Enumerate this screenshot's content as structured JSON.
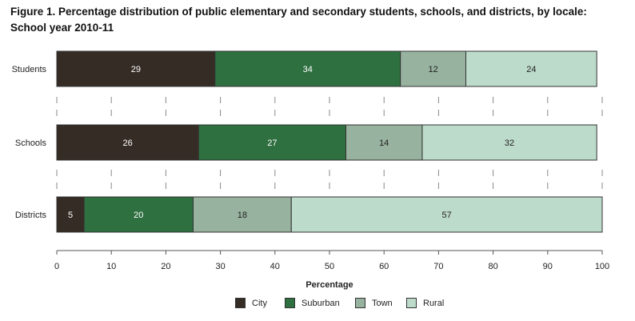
{
  "title_line1": "Figure 1. Percentage distribution of public elementary and secondary students, schools, and districts, by locale:",
  "title_line2": "School year 2010-11",
  "colors": {
    "city": "#352c25",
    "suburban": "#2e7040",
    "town": "#97b29e",
    "rural": "#bddbcb",
    "axis": "#555555",
    "text_light": "#ffffff",
    "text_dark": "#222222"
  },
  "chart_data": {
    "type": "bar",
    "orientation": "horizontal",
    "stacked": true,
    "categories": [
      "Students",
      "Schools",
      "Districts"
    ],
    "series": [
      {
        "name": "City",
        "values": [
          29,
          26,
          5
        ]
      },
      {
        "name": "Suburban",
        "values": [
          34,
          27,
          20
        ]
      },
      {
        "name": "Town",
        "values": [
          12,
          14,
          18
        ]
      },
      {
        "name": "Rural",
        "values": [
          24,
          32,
          57
        ]
      }
    ],
    "xlabel": "Percentage",
    "xlim": [
      0,
      100
    ],
    "xticks": [
      0,
      10,
      20,
      30,
      40,
      50,
      60,
      70,
      80,
      90,
      100
    ],
    "legend_position": "bottom"
  }
}
